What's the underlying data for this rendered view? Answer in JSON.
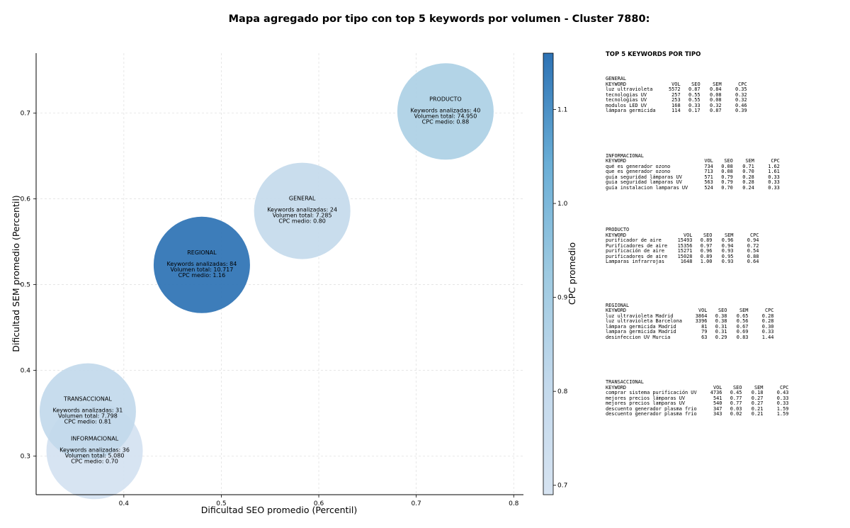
{
  "title": "Mapa agregado por tipo con top 5 keywords por volumen - Cluster 7880:",
  "chart_data": {
    "type": "scatter",
    "xlabel": "Dificultad SEO promedio (Percentil)",
    "ylabel": "Dificultad SEM promedio (Percentil)",
    "colorbar_label": "CPC promedio",
    "xlim": [
      0.31,
      0.81
    ],
    "ylim": [
      0.255,
      0.77
    ],
    "xticks": [
      "0.4",
      "0.5",
      "0.6",
      "0.7",
      "0.8"
    ],
    "yticks": [
      "0.3",
      "0.4",
      "0.5",
      "0.6",
      "0.7"
    ],
    "colorbar_ticks": [
      "0.7",
      "0.8",
      "0.9",
      "1.0",
      "1.1"
    ],
    "colorbar_range": [
      0.69,
      1.16
    ],
    "grid": true,
    "points": [
      {
        "name": "PRODUCTO",
        "x": 0.73,
        "y": 0.702,
        "cpc": 0.88,
        "line1": "Keywords analizadas: 40",
        "line2": "Volumen total: 74.950",
        "line3": "CPC medio: 0.88"
      },
      {
        "name": "GENERAL",
        "x": 0.583,
        "y": 0.586,
        "cpc": 0.8,
        "line1": "Keywords analizadas: 24",
        "line2": "Volumen total: 7.285",
        "line3": "CPC medio: 0.80"
      },
      {
        "name": "REGIONAL",
        "x": 0.48,
        "y": 0.523,
        "cpc": 1.16,
        "line1": "Keywords analizadas: 84",
        "line2": "Volumen total: 10.717",
        "line3": "CPC medio: 1.16"
      },
      {
        "name": "TRANSACCIONAL",
        "x": 0.363,
        "y": 0.352,
        "cpc": 0.81,
        "line1": "Keywords analizadas: 31",
        "line2": "Volumen total: 7.798",
        "line3": "CPC medio: 0.81"
      },
      {
        "name": "INFORMACIONAL",
        "x": 0.37,
        "y": 0.306,
        "cpc": 0.7,
        "line1": "Keywords analizadas: 36",
        "line2": "Volumen total: 5.080",
        "line3": "CPC medio: 0.70"
      }
    ]
  },
  "panel": {
    "title": "TOP 5 KEYWORDS POR TIPO",
    "groups": [
      {
        "name": "GENERAL",
        "header": [
          "KEYWORD",
          "VOL",
          "SEO",
          "SEM",
          "CPC"
        ],
        "rows": [
          [
            "luz ultravioleta",
            "5572",
            "0.87",
            "0.84",
            "0.35"
          ],
          [
            "tecnologias UV",
            "257",
            "0.55",
            "0.08",
            "0.32"
          ],
          [
            "tecnologías UV",
            "253",
            "0.55",
            "0.08",
            "0.32"
          ],
          [
            "modulos LED UV",
            "168",
            "0.33",
            "0.32",
            "0.46"
          ],
          [
            "lámpara germicida",
            "114",
            "0.17",
            "0.87",
            "0.39"
          ]
        ]
      },
      {
        "name": "INFORMACIONAL",
        "header": [
          "KEYWORD",
          "VOL",
          "SEO",
          "SEM",
          "CPC"
        ],
        "rows": [
          [
            "qué es generador ozono",
            "734",
            "0.08",
            "0.71",
            "1.62"
          ],
          [
            "que es generador ozono",
            "713",
            "0.08",
            "0.70",
            "1.61"
          ],
          [
            "guía seguridad lámparas UV",
            "571",
            "0.79",
            "0.28",
            "0.33"
          ],
          [
            "guia seguridad lamparas UV",
            "563",
            "0.79",
            "0.28",
            "0.33"
          ],
          [
            "guía instalacion lamparas UV",
            "524",
            "0.70",
            "0.24",
            "0.33"
          ]
        ]
      },
      {
        "name": "PRODUCTO",
        "header": [
          "KEYWORD",
          "VOL",
          "SEO",
          "SEM",
          "CPC"
        ],
        "rows": [
          [
            "purificador de aire",
            "15493",
            "0.89",
            "0.96",
            "0.94"
          ],
          [
            "Purificadores de aire",
            "15356",
            "0.97",
            "0.94",
            "0.72"
          ],
          [
            "purificación de aire",
            "15271",
            "0.96",
            "0.93",
            "0.54"
          ],
          [
            "purificadores de aire",
            "15028",
            "0.89",
            "0.95",
            "0.88"
          ],
          [
            "Lamparas infrarrojas",
            "1648",
            "1.00",
            "0.93",
            "0.64"
          ]
        ]
      },
      {
        "name": "REGIONAL",
        "header": [
          "KEYWORD",
          "VOL",
          "SEO",
          "SEM",
          "CPC"
        ],
        "rows": [
          [
            "luz ultravioleta Madrid",
            "3864",
            "0.38",
            "0.65",
            "0.28"
          ],
          [
            "luz ultravioleta Barcelona",
            "3396",
            "0.38",
            "0.56",
            "0.28"
          ],
          [
            "lámpara germicida Madrid",
            "81",
            "0.31",
            "0.67",
            "0.30"
          ],
          [
            "lampara germicida Madrid",
            "79",
            "0.31",
            "0.69",
            "0.33"
          ],
          [
            "desinfeccion UV Murcia",
            "63",
            "0.29",
            "0.83",
            "1.44"
          ]
        ]
      },
      {
        "name": "TRANSACCIONAL",
        "header": [
          "KEYWORD",
          "VOL",
          "SEO",
          "SEM",
          "CPC"
        ],
        "rows": [
          [
            "comprar sistema purificación UV",
            "4736",
            "0.45",
            "0.18",
            "0.43"
          ],
          [
            "mejores precios lámparas UV",
            "541",
            "0.77",
            "0.27",
            "0.33"
          ],
          [
            "mejores precios lamparas UV",
            "540",
            "0.77",
            "0.27",
            "0.33"
          ],
          [
            "descuento generador plasma frio",
            "347",
            "0.03",
            "0.21",
            "1.59"
          ],
          [
            "descuento generador plasma frío",
            "343",
            "0.02",
            "0.21",
            "1.59"
          ]
        ]
      }
    ]
  }
}
